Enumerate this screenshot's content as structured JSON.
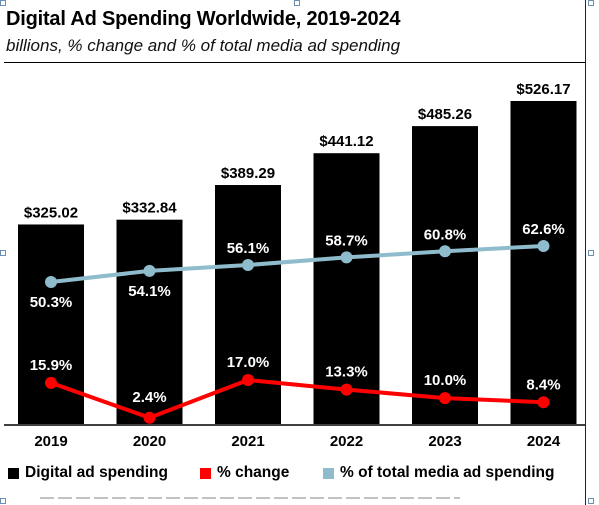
{
  "chart_data": {
    "type": "bar",
    "title": "Digital Ad Spending Worldwide, 2019-2024",
    "subtitle": "billions, % change and % of total media ad spending",
    "categories": [
      "2019",
      "2020",
      "2021",
      "2022",
      "2023",
      "2024"
    ],
    "series": [
      {
        "name": "Digital ad spending",
        "type": "bar",
        "values": [
          325.02,
          332.84,
          389.29,
          441.12,
          485.26,
          526.17
        ],
        "labels": [
          "$325.02",
          "$332.84",
          "$389.29",
          "$441.12",
          "$485.26",
          "$526.17"
        ],
        "color": "#000000"
      },
      {
        "name": "% change",
        "type": "line",
        "values": [
          15.9,
          2.4,
          17.0,
          13.3,
          10.0,
          8.4
        ],
        "labels": [
          "15.9%",
          "2.4%",
          "17.0%",
          "13.3%",
          "10.0%",
          "8.4%"
        ],
        "color": "#ff0000"
      },
      {
        "name": "% of total media ad spending",
        "type": "line",
        "values": [
          50.3,
          54.1,
          56.1,
          58.7,
          60.8,
          62.6
        ],
        "labels": [
          "50.3%",
          "54.1%",
          "56.1%",
          "58.7%",
          "60.8%",
          "62.6%"
        ],
        "color": "#8fbccc"
      }
    ],
    "ylim": [
      0,
      560
    ],
    "grid": false,
    "legend_position": "bottom"
  }
}
